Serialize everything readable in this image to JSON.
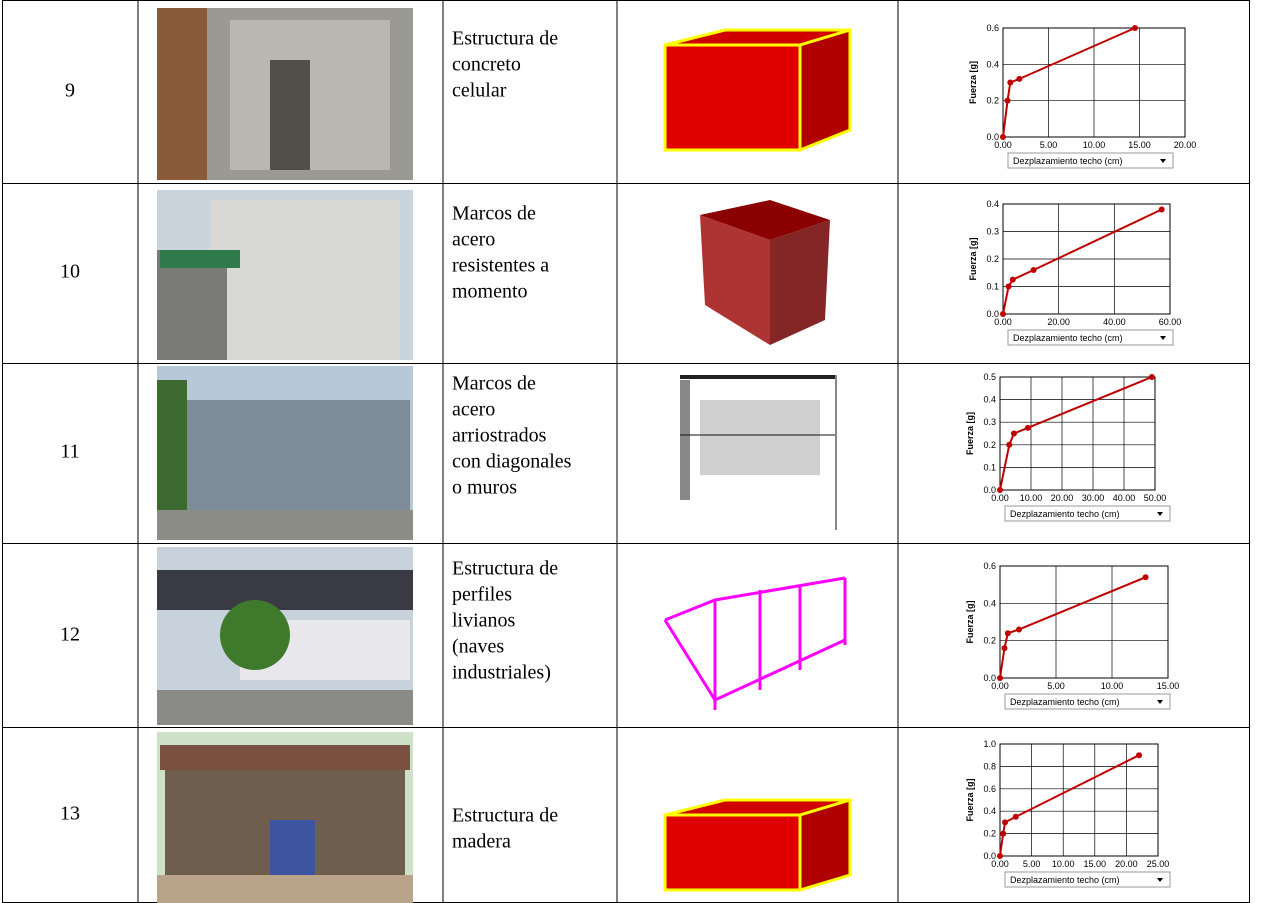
{
  "table": {
    "rows": [
      {
        "number": 9,
        "description": [
          "Estructura de",
          "concreto",
          "celular"
        ],
        "chart": {
          "ylabel": "Fuerza [g]",
          "xlabel": "Dezplazamiento techo (cm)",
          "xlim": [
            0,
            20
          ],
          "xticks": [
            {
              "value": 0,
              "label": "0.00"
            },
            {
              "value": 5,
              "label": "5.00"
            },
            {
              "value": 10,
              "label": "10.00"
            },
            {
              "value": 15,
              "label": "15.00"
            },
            {
              "value": 20,
              "label": "20.00"
            }
          ],
          "ylim": [
            0,
            0.6
          ],
          "yticks": [
            {
              "value": 0,
              "label": "0.0"
            },
            0.2,
            0.4,
            0.6
          ],
          "color": "#c00000",
          "x": [
            0,
            0.5,
            0.8,
            1.8,
            14.5
          ],
          "y": [
            0,
            0.2,
            0.3,
            0.32,
            0.6
          ]
        }
      },
      {
        "number": 10,
        "description": [
          "Marcos de",
          "acero",
          "resistentes a",
          "momento"
        ],
        "chart": {
          "ylabel": "Fuerza [g]",
          "xlabel": "Dezplazamiento techo (cm)",
          "xlim": [
            0,
            60
          ],
          "xticks": [
            {
              "value": 0,
              "label": "0.00"
            },
            {
              "value": 20,
              "label": "20.00"
            },
            {
              "value": 40,
              "label": "40.00"
            },
            {
              "value": 60,
              "label": "60.00"
            }
          ],
          "ylim": [
            0,
            0.4
          ],
          "yticks": [
            {
              "value": 0,
              "label": "0.0"
            },
            0.1,
            0.2,
            0.3,
            0.4
          ],
          "color": "#c00000",
          "x": [
            0,
            2,
            3.5,
            11,
            57
          ],
          "y": [
            0,
            0.1,
            0.125,
            0.16,
            0.38
          ]
        }
      },
      {
        "number": 11,
        "description": [
          "Marcos de",
          "acero",
          "arriostrados",
          "con diagonales",
          "o muros"
        ],
        "chart": {
          "ylabel": "Fuerza [g]",
          "xlabel": "Dezplazamiento techo (cm)",
          "xlim": [
            0,
            50
          ],
          "xticks": [
            {
              "value": 0,
              "label": "0.00"
            },
            {
              "value": 10,
              "label": "10.00"
            },
            {
              "value": 20,
              "label": "20.00"
            },
            {
              "value": 30,
              "label": "30.00"
            },
            {
              "value": 40,
              "label": "40.00"
            },
            {
              "value": 50,
              "label": "50.00"
            }
          ],
          "ylim": [
            0,
            0.5
          ],
          "yticks": [
            {
              "value": 0,
              "label": "0.0"
            },
            0.1,
            0.2,
            0.3,
            0.4,
            0.5
          ],
          "color": "#c00000",
          "x": [
            0,
            3,
            4.5,
            9,
            49
          ],
          "y": [
            0,
            0.2,
            0.25,
            0.275,
            0.5
          ]
        }
      },
      {
        "number": 12,
        "description": [
          "Estructura de",
          "perfiles",
          "livianos",
          "(naves",
          "industriales)"
        ],
        "chart": {
          "ylabel": "Fuerza [g]",
          "xlabel": "Dezplazamiento techo (cm)",
          "xlim": [
            0,
            15
          ],
          "xticks": [
            {
              "value": 0,
              "label": "0.00"
            },
            {
              "value": 5,
              "label": "5.00"
            },
            {
              "value": 10,
              "label": "10.00"
            },
            {
              "value": 15,
              "label": "15.00"
            }
          ],
          "ylim": [
            0,
            0.6
          ],
          "yticks": [
            {
              "value": 0,
              "label": "0.0"
            },
            0.2,
            0.4,
            0.6
          ],
          "color": "#c00000",
          "x": [
            0,
            0.4,
            0.7,
            1.7,
            13
          ],
          "y": [
            0,
            0.16,
            0.24,
            0.26,
            0.54
          ]
        }
      },
      {
        "number": 13,
        "description": [
          "Estructura de",
          "madera"
        ],
        "chart": {
          "ylabel": "Fuerza [g]",
          "xlabel": "Dezplazamiento techo (cm)",
          "xlim": [
            0,
            25
          ],
          "xticks": [
            {
              "value": 0,
              "label": "0.00"
            },
            {
              "value": 5,
              "label": "5.00"
            },
            {
              "value": 10,
              "label": "10.00"
            },
            {
              "value": 15,
              "label": "15.00"
            },
            {
              "value": 20,
              "label": "20.00"
            },
            {
              "value": 25,
              "label": "25.00"
            }
          ],
          "ylim": [
            0,
            1
          ],
          "yticks": [
            {
              "value": 0,
              "label": "0.0"
            },
            0.2,
            0.4,
            0.6,
            0.8,
            {
              "value": 1,
              "label": "1.0"
            }
          ],
          "color": "#c00000",
          "x": [
            0,
            0.5,
            0.8,
            2.5,
            22
          ],
          "y": [
            0,
            0.2,
            0.3,
            0.35,
            0.9
          ]
        }
      }
    ]
  }
}
